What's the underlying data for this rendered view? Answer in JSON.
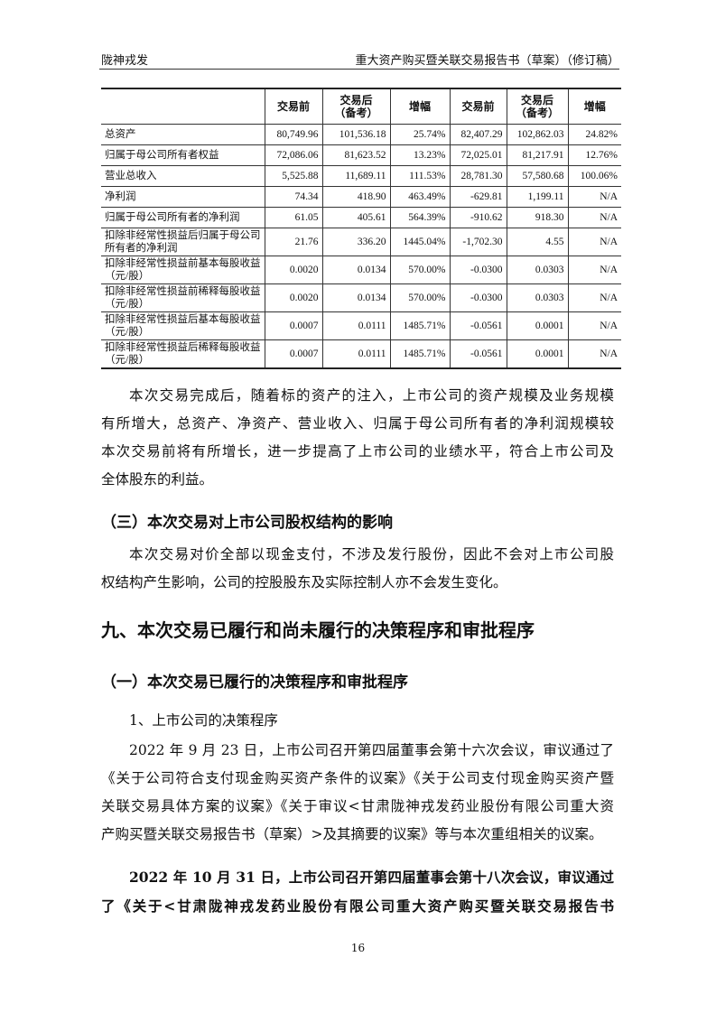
{
  "header": {
    "left": "陇神戎发",
    "right": "重大资产购买暨关联交易报告书（草案）（修订稿）"
  },
  "table": {
    "headers": [
      "",
      "交易前",
      "交易后\n（备考）",
      "增幅",
      "交易前",
      "交易后\n（备考）",
      "增幅"
    ],
    "rows": [
      [
        "总资产",
        "80,749.96",
        "101,536.18",
        "25.74%",
        "82,407.29",
        "102,862.03",
        "24.82%"
      ],
      [
        "归属于母公司所有者权益",
        "72,086.06",
        "81,623.52",
        "13.23%",
        "72,025.01",
        "81,217.91",
        "12.76%"
      ],
      [
        "营业总收入",
        "5,525.88",
        "11,689.11",
        "111.53%",
        "28,781.30",
        "57,580.68",
        "100.06%"
      ],
      [
        "净利润",
        "74.34",
        "418.90",
        "463.49%",
        "-629.81",
        "1,199.11",
        "N/A"
      ],
      [
        "归属于母公司所有者的净利润",
        "61.05",
        "405.61",
        "564.39%",
        "-910.62",
        "918.30",
        "N/A"
      ],
      [
        "扣除非经常性损益后归属于母公司所有者的净利润",
        "21.76",
        "336.20",
        "1445.04%",
        "-1,702.30",
        "4.55",
        "N/A"
      ],
      [
        "扣除非经常性损益前基本每股收益（元/股）",
        "0.0020",
        "0.0134",
        "570.00%",
        "-0.0300",
        "0.0303",
        "N/A"
      ],
      [
        "扣除非经常性损益前稀释每股收益（元/股）",
        "0.0020",
        "0.0134",
        "570.00%",
        "-0.0300",
        "0.0303",
        "N/A"
      ],
      [
        "扣除非经常性损益后基本每股收益（元/股）",
        "0.0007",
        "0.0111",
        "1485.71%",
        "-0.0561",
        "0.0001",
        "N/A"
      ],
      [
        "扣除非经常性损益后稀释每股收益（元/股）",
        "0.0007",
        "0.0111",
        "1485.71%",
        "-0.0561",
        "0.0001",
        "N/A"
      ]
    ]
  },
  "lines": [
    "本次交易完成后，随着标的资产的注入，上市公司的资产规模及业务规模",
    "有所增大，总资产、净资产、营业收入、归属于母公司所有者的净利润规模较",
    "本次交易前将有所增长，进一步提高了上市公司的业绩水平，符合上市公司及",
    "全体股东的利益。",
    "（三）本次交易对上市公司股权结构的影响",
    "本次交易对价全部以现金支付，不涉及发行股份，因此不会对上市公司股",
    "权结构产生影响，公司的控股股东及实际控制人亦不会发生变化。",
    "九、本次交易已履行和尚未履行的决策程序和审批程序",
    "（一）本次交易已履行的决策程序和审批程序",
    "1、上市公司的决策程序",
    "2022 年 9 月 23 日，上市公司召开第四届董事会第十六次会议，审议通过了",
    "《关于公司符合支付现金购买资产条件的议案》《关于公司支付现金购买资产暨",
    "关联交易具体方案的议案》《关于审议<甘肃陇神戎发药业股份有限公司重大资",
    "产购买暨关联交易报告书（草案）>及其摘要的议案》等与本次重组相关的议案。",
    "2022 年 10 月 31 日，上市公司召开第四届董事会第十八次会议，审议通过",
    "了《关于<甘肃陇神戎发药业股份有限公司重大资产购买暨关联交易报告书"
  ],
  "page_number": "16"
}
